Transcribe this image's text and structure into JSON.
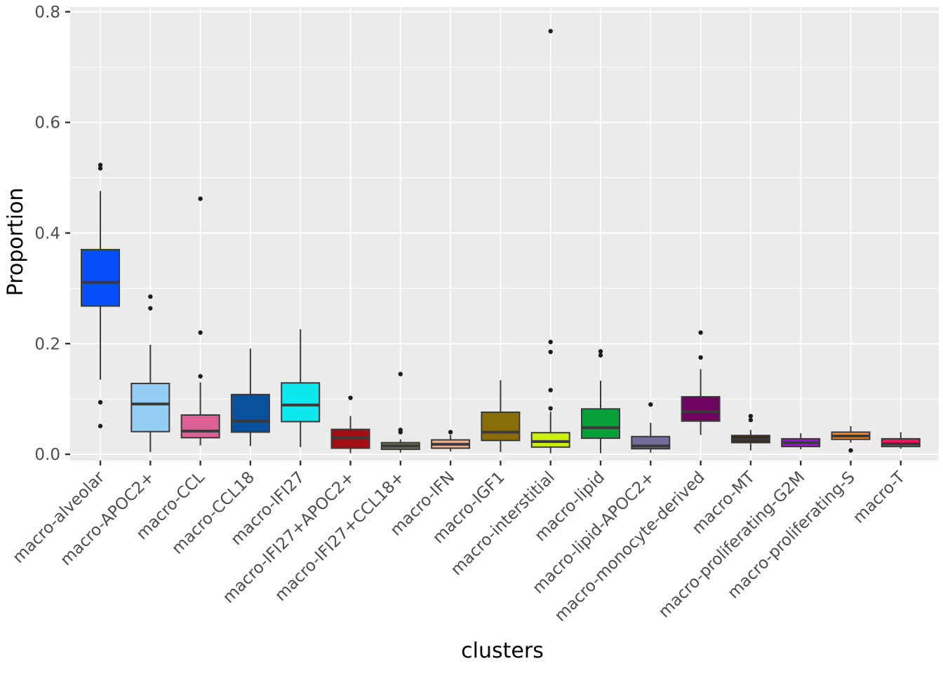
{
  "figure": {
    "panel_bg": "#EBEBEB",
    "grid_color": "#FFFFFF",
    "box_border_color": "#3A3A3A",
    "whisker_color": "#3C3C3C",
    "outlier_color": "#1C1C1C",
    "tick_label_color": "#4D4D4D",
    "axis_title_color": "#000000"
  },
  "chart_data": {
    "type": "boxplot",
    "title": "",
    "xlabel": "clusters",
    "ylabel": "Proportion",
    "ylim": [
      0,
      0.8
    ],
    "ytick_labels": [
      "0.0",
      "0.2",
      "0.4",
      "0.6",
      "0.8"
    ],
    "ytick_values": [
      0.0,
      0.2,
      0.4,
      0.6,
      0.8
    ],
    "minor_gridlines": [
      0.1,
      0.3,
      0.5,
      0.7
    ],
    "grid": true,
    "legend_position": "none",
    "categories": [
      "macro-alveolar",
      "macro-APOC2+",
      "macro-CCL",
      "macro-CCL18",
      "macro-IFI27",
      "macro-IFI27+APOC2+",
      "macro-IFI27+CCL18+",
      "macro-IFN",
      "macro-IGF1",
      "macro-interstitial",
      "macro-lipid",
      "macro-lipid-APOC2+",
      "macro-monocyte-derived",
      "macro-MT",
      "macro-proliferating-G2M",
      "macro-proliferating-S",
      "macro-T"
    ],
    "series": [
      {
        "name": "macro-alveolar",
        "color": "#0550FB",
        "whisker_low": 0.135,
        "q1": 0.268,
        "median": 0.311,
        "q3": 0.37,
        "whisker_high": 0.476,
        "outliers": [
          0.523,
          0.517,
          0.094,
          0.051
        ]
      },
      {
        "name": "macro-APOC2+",
        "color": "#95CEF5",
        "whisker_low": 0.004,
        "q1": 0.041,
        "median": 0.091,
        "q3": 0.128,
        "whisker_high": 0.198,
        "outliers": [
          0.285,
          0.264
        ]
      },
      {
        "name": "macro-CCL",
        "color": "#DB6196",
        "whisker_low": 0.016,
        "q1": 0.03,
        "median": 0.042,
        "q3": 0.071,
        "whisker_high": 0.13,
        "outliers": [
          0.462,
          0.22,
          0.141
        ]
      },
      {
        "name": "macro-CCL18",
        "color": "#09519E",
        "whisker_low": 0.015,
        "q1": 0.04,
        "median": 0.06,
        "q3": 0.108,
        "whisker_high": 0.191,
        "outliers": []
      },
      {
        "name": "macro-IFI27",
        "color": "#0BE8EE",
        "whisker_low": 0.013,
        "q1": 0.059,
        "median": 0.089,
        "q3": 0.129,
        "whisker_high": 0.226,
        "outliers": []
      },
      {
        "name": "macro-IFI27+APOC2+",
        "color": "#A40F14",
        "whisker_low": 0.002,
        "q1": 0.011,
        "median": 0.03,
        "q3": 0.045,
        "whisker_high": 0.069,
        "outliers": [
          0.102
        ]
      },
      {
        "name": "macro-IFI27+CCL18+",
        "color": "#6F7458",
        "whisker_low": 0.003,
        "q1": 0.009,
        "median": 0.015,
        "q3": 0.021,
        "whisker_high": 0.027,
        "outliers": [
          0.145,
          0.044,
          0.04
        ]
      },
      {
        "name": "macro-IFN",
        "color": "#F5AE8E",
        "whisker_low": 0.005,
        "q1": 0.011,
        "median": 0.018,
        "q3": 0.026,
        "whisker_high": 0.035,
        "outliers": [
          0.04
        ]
      },
      {
        "name": "macro-IGF1",
        "color": "#8A6D0B",
        "whisker_low": 0.004,
        "q1": 0.025,
        "median": 0.04,
        "q3": 0.076,
        "whisker_high": 0.134,
        "outliers": []
      },
      {
        "name": "macro-interstitial",
        "color": "#CCF00D",
        "whisker_low": 0.002,
        "q1": 0.013,
        "median": 0.023,
        "q3": 0.039,
        "whisker_high": 0.077,
        "outliers": [
          0.765,
          0.203,
          0.185,
          0.116,
          0.083
        ]
      },
      {
        "name": "macro-lipid",
        "color": "#08A03B",
        "whisker_low": 0.002,
        "q1": 0.029,
        "median": 0.048,
        "q3": 0.082,
        "whisker_high": 0.133,
        "outliers": [
          0.186,
          0.179
        ]
      },
      {
        "name": "macro-lipid-APOC2+",
        "color": "#736C99",
        "whisker_low": 0.003,
        "q1": 0.01,
        "median": 0.015,
        "q3": 0.032,
        "whisker_high": 0.057,
        "outliers": [
          0.09
        ]
      },
      {
        "name": "macro-monocyte-derived",
        "color": "#700561",
        "whisker_low": 0.035,
        "q1": 0.06,
        "median": 0.077,
        "q3": 0.104,
        "whisker_high": 0.154,
        "outliers": [
          0.22,
          0.175
        ]
      },
      {
        "name": "macro-MT",
        "color": "#332B18",
        "whisker_low": 0.007,
        "q1": 0.021,
        "median": 0.027,
        "q3": 0.034,
        "whisker_high": 0.044,
        "outliers": [
          0.069,
          0.062
        ]
      },
      {
        "name": "macro-proliferating-G2M",
        "color": "#9C14CC",
        "whisker_low": 0.009,
        "q1": 0.014,
        "median": 0.021,
        "q3": 0.028,
        "whisker_high": 0.038,
        "outliers": []
      },
      {
        "name": "macro-proliferating-S",
        "color": "#F28C2B",
        "whisker_low": 0.021,
        "q1": 0.027,
        "median": 0.033,
        "q3": 0.04,
        "whisker_high": 0.051,
        "outliers": [
          0.007
        ]
      },
      {
        "name": "macro-T",
        "color": "#E8195E",
        "whisker_low": 0.01,
        "q1": 0.014,
        "median": 0.019,
        "q3": 0.028,
        "whisker_high": 0.04,
        "outliers": []
      }
    ]
  }
}
